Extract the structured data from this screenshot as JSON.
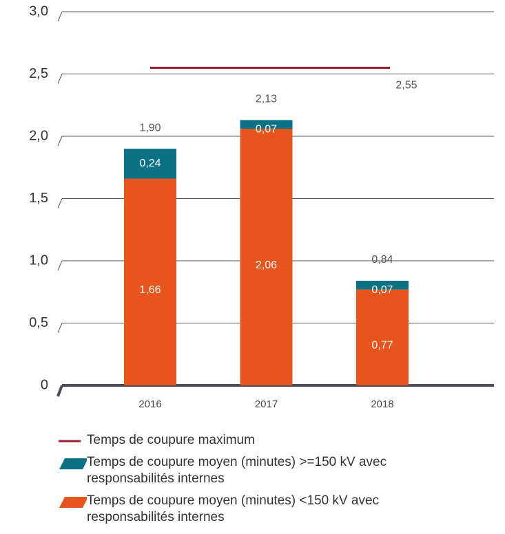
{
  "chart_data": {
    "type": "stacked_bar",
    "categories": [
      "2016",
      "2017",
      "2018"
    ],
    "series": [
      {
        "name": "Temps de coupure moyen (minutes) <150 kV avec responsabilités internes",
        "color": "#e8541e",
        "values": [
          1.66,
          2.06,
          0.77
        ],
        "value_labels": [
          "1,66",
          "2,06",
          "0,77"
        ]
      },
      {
        "name": "Temps de coupure moyen (minutes) >=150 kV avec responsabilités internes",
        "color": "#0b7285",
        "values": [
          0.24,
          0.07,
          0.07
        ],
        "value_labels": [
          "0,24",
          "0,07",
          "0,07"
        ]
      }
    ],
    "totals": {
      "values": [
        1.9,
        2.13,
        0.84
      ],
      "value_labels": [
        "1,90",
        "2,13",
        "0,84"
      ]
    },
    "reference_line": {
      "name": "Temps de coupure maximum",
      "value": 2.55,
      "value_label": "2,55",
      "color": "#9b1b30"
    },
    "ylim": [
      0,
      3.0
    ],
    "yticks": [
      0,
      {
        "value": 0.5,
        "label": "0,5"
      },
      {
        "value": 1.0,
        "label": "1,0"
      },
      {
        "value": 1.5,
        "label": "1,5"
      },
      {
        "value": 2.0,
        "label": "2,0"
      },
      {
        "value": 2.5,
        "label": "2,5"
      },
      {
        "value": 3.0,
        "label": "3,0"
      }
    ],
    "grid": true
  }
}
